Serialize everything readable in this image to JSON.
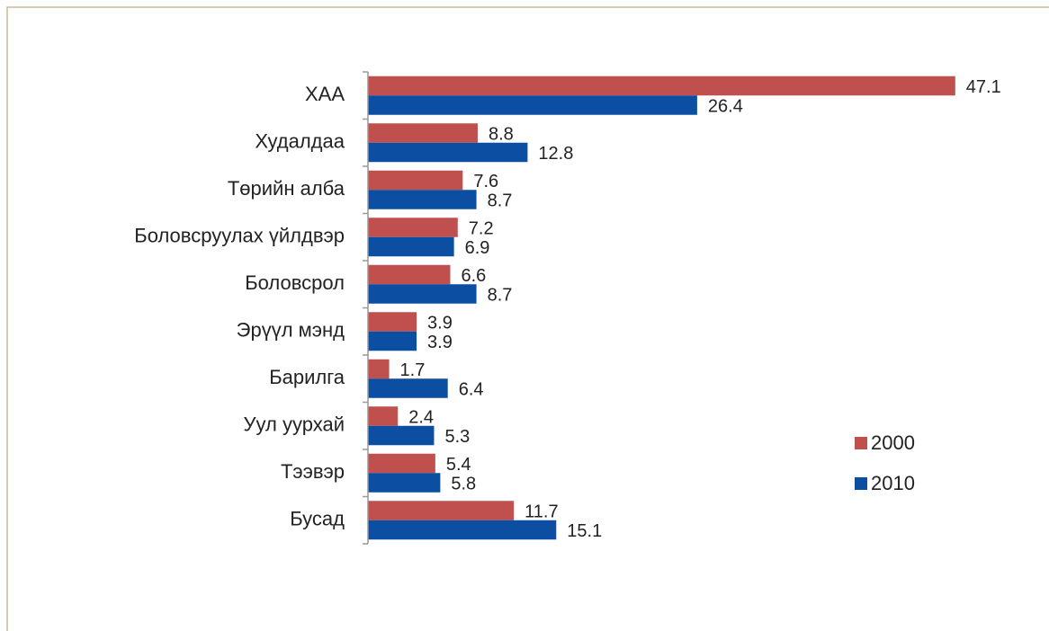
{
  "chart_data": {
    "type": "bar",
    "orientation": "horizontal",
    "categories": [
      "ХАА",
      "Худалдаа",
      "Төрийн алба",
      "Боловсруулах үйлдвэр",
      "Боловсрол",
      "Эрүүл мэнд",
      "Барилга",
      "Уул уурхай",
      "Тээвэр",
      "Бусад"
    ],
    "series": [
      {
        "name": "2000",
        "color": "#c0504d",
        "values": [
          47.1,
          8.8,
          7.6,
          7.2,
          6.6,
          3.9,
          1.7,
          2.4,
          5.4,
          11.7
        ]
      },
      {
        "name": "2010",
        "color": "#0b4ea2",
        "values": [
          26.4,
          12.8,
          8.7,
          6.9,
          8.7,
          3.9,
          6.4,
          5.3,
          5.8,
          15.1
        ]
      }
    ],
    "xlim": [
      0,
      50
    ],
    "legend": "right"
  }
}
